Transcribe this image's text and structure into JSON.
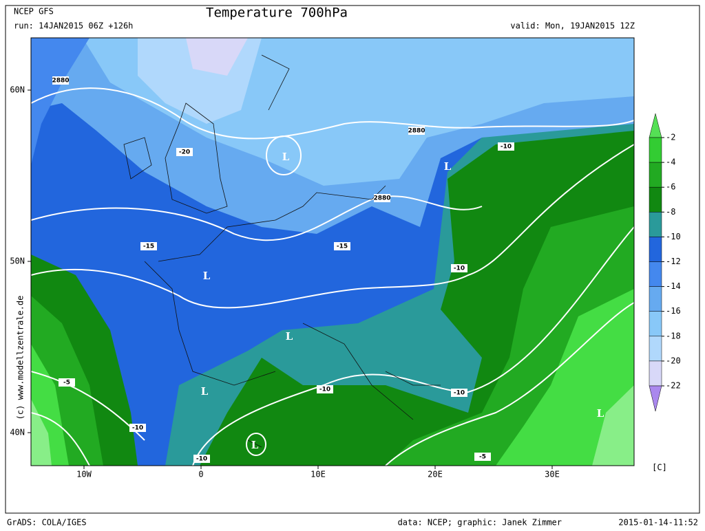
{
  "header": {
    "model": "NCEP GFS",
    "run": "run: 14JAN2015 06Z +126h",
    "title": "Temperature 700hPa",
    "valid": "valid: Mon, 19JAN2015 12Z"
  },
  "map": {
    "lat_labels": [
      "60N",
      "50N",
      "40N"
    ],
    "lon_labels": [
      "10W",
      "0",
      "10E",
      "20E",
      "30E"
    ],
    "contour_labels": [
      "2880",
      "2880",
      "2880",
      "-20",
      "-15",
      "-15",
      "-10",
      "-10",
      "-10",
      "-10",
      "-10",
      "-10",
      "-5",
      "-5"
    ],
    "lows": [
      "L",
      "L",
      "L",
      "L",
      "L",
      "L",
      "L"
    ],
    "copyright": "(c)  www.modellzentrale.de"
  },
  "colorbar": {
    "levels": [
      -2,
      -4,
      -6,
      -8,
      -10,
      -12,
      -14,
      -16,
      -18,
      -20,
      -22
    ],
    "unit": "[C]"
  },
  "footer": {
    "software": "GrADS: COLA/IGES",
    "credit": "data: NCEP; graphic: Janek Zimmer",
    "timestamp": "2015-01-14-11:52"
  }
}
